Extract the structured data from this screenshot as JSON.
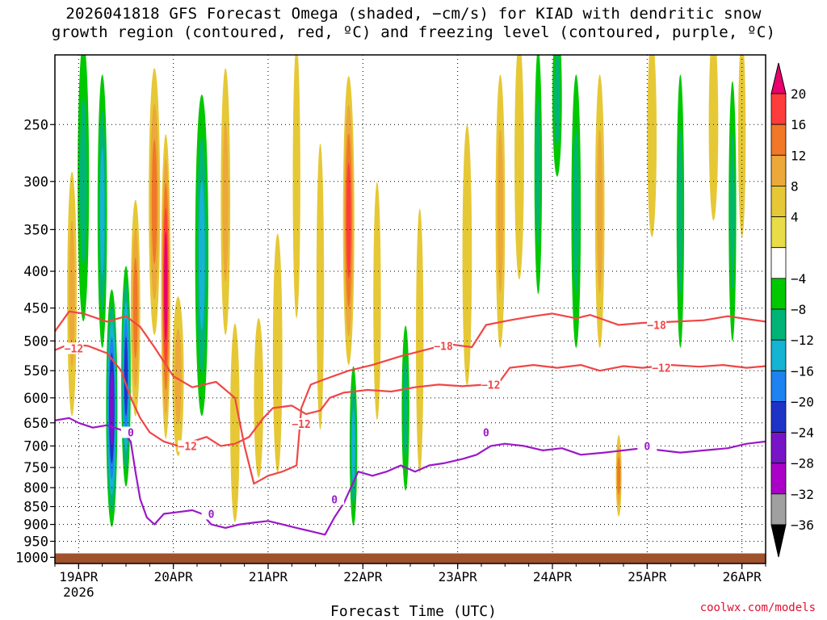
{
  "header": {
    "title_line1": "2026041818 GFS Forecast Omega (shaded, −cm/s) for KIAD with dendritic snow",
    "title_line2": "growth region (contoured, red, ºC) and freezing level (contoured, purple, ºC)"
  },
  "footer": {
    "xlabel": "Forecast Time (UTC)",
    "credit": "coolwx.com/models"
  },
  "chart_data": {
    "type": "heatmap",
    "title": "2026041818 GFS Forecast Omega (shaded, −cm/s) for KIAD with dendritic snow growth region (contoured, red, ºC) and freezing level (contoured, purple, ºC)",
    "xlabel": "Forecast Time (UTC)",
    "ylabel": "",
    "x_ticks": [
      "19APR",
      "20APR",
      "21APR",
      "22APR",
      "23APR",
      "24APR",
      "25APR",
      "26APR"
    ],
    "x_year_label": "2026",
    "y_ticks": [
      250,
      300,
      350,
      400,
      450,
      500,
      550,
      600,
      650,
      700,
      750,
      800,
      850,
      900,
      950,
      1000
    ],
    "y_range_hpa": [
      200,
      1020
    ],
    "y_scale": "log-pressure",
    "x_range_days": [
      18.75,
      26.25
    ],
    "grid": true,
    "colorbar": {
      "levels": [
        -36,
        -32,
        -28,
        -24,
        -20,
        -16,
        -12,
        -8,
        -4,
        4,
        8,
        12,
        16,
        20
      ],
      "labels": [
        "20",
        "16",
        "12",
        "8",
        "4",
        "−4",
        "−8",
        "−12",
        "−16",
        "−20",
        "−24",
        "−28",
        "−32",
        "−36"
      ],
      "colors_top_to_bottom": [
        "#e8006c",
        "#ff3c3c",
        "#f07828",
        "#eca83a",
        "#e6c836",
        "#e8dc48",
        "#ffffff",
        "#00c800",
        "#00b478",
        "#14b4d2",
        "#1e82f0",
        "#1e32c8",
        "#7814c8",
        "#aa00c8",
        "#a0a0a0",
        "#000000"
      ]
    },
    "omega_blobs": [
      {
        "t": 18.93,
        "p": 430,
        "w": 0.05,
        "h": 320,
        "v": 10
      },
      {
        "t": 19.05,
        "p": 300,
        "w": 0.06,
        "h": 380,
        "v": -8
      },
      {
        "t": 19.25,
        "p": 330,
        "w": 0.05,
        "h": 300,
        "v": -12
      },
      {
        "t": 19.35,
        "p": 620,
        "w": 0.06,
        "h": 450,
        "v": -24
      },
      {
        "t": 19.5,
        "p": 560,
        "w": 0.05,
        "h": 380,
        "v": -20
      },
      {
        "t": 19.6,
        "p": 450,
        "w": 0.05,
        "h": 300,
        "v": 12
      },
      {
        "t": 19.8,
        "p": 320,
        "w": 0.06,
        "h": 300,
        "v": 14
      },
      {
        "t": 19.92,
        "p": 420,
        "w": 0.05,
        "h": 380,
        "v": 20
      },
      {
        "t": 20.05,
        "p": 560,
        "w": 0.06,
        "h": 280,
        "v": 10
      },
      {
        "t": 20.3,
        "p": 380,
        "w": 0.07,
        "h": 360,
        "v": -14
      },
      {
        "t": 20.55,
        "p": 320,
        "w": 0.05,
        "h": 300,
        "v": 10
      },
      {
        "t": 20.65,
        "p": 650,
        "w": 0.05,
        "h": 400,
        "v": 6
      },
      {
        "t": 20.9,
        "p": 600,
        "w": 0.05,
        "h": 300,
        "v": 5
      },
      {
        "t": 21.1,
        "p": 520,
        "w": 0.05,
        "h": 380,
        "v": 6
      },
      {
        "t": 21.3,
        "p": 300,
        "w": 0.04,
        "h": 360,
        "v": 5
      },
      {
        "t": 21.55,
        "p": 420,
        "w": 0.04,
        "h": 360,
        "v": 5
      },
      {
        "t": 21.85,
        "p": 340,
        "w": 0.06,
        "h": 330,
        "v": 18
      },
      {
        "t": 21.9,
        "p": 700,
        "w": 0.04,
        "h": 350,
        "v": -12
      },
      {
        "t": 22.15,
        "p": 440,
        "w": 0.04,
        "h": 320,
        "v": 5
      },
      {
        "t": 22.45,
        "p": 620,
        "w": 0.04,
        "h": 320,
        "v": -8
      },
      {
        "t": 22.6,
        "p": 500,
        "w": 0.04,
        "h": 400,
        "v": 5
      },
      {
        "t": 23.1,
        "p": 380,
        "w": 0.05,
        "h": 300,
        "v": 6
      },
      {
        "t": 23.45,
        "p": 330,
        "w": 0.05,
        "h": 300,
        "v": 8
      },
      {
        "t": 23.65,
        "p": 280,
        "w": 0.05,
        "h": 300,
        "v": 5
      },
      {
        "t": 23.85,
        "p": 290,
        "w": 0.04,
        "h": 300,
        "v": -8
      },
      {
        "t": 24.05,
        "p": 230,
        "w": 0.05,
        "h": 200,
        "v": -10
      },
      {
        "t": 24.25,
        "p": 330,
        "w": 0.05,
        "h": 300,
        "v": -8
      },
      {
        "t": 24.5,
        "p": 330,
        "w": 0.05,
        "h": 300,
        "v": 8
      },
      {
        "t": 24.7,
        "p": 770,
        "w": 0.03,
        "h": 200,
        "v": 12
      },
      {
        "t": 25.05,
        "p": 260,
        "w": 0.05,
        "h": 240,
        "v": 5
      },
      {
        "t": 25.35,
        "p": 330,
        "w": 0.04,
        "h": 300,
        "v": -8
      },
      {
        "t": 25.7,
        "p": 250,
        "w": 0.05,
        "h": 240,
        "v": 6
      },
      {
        "t": 25.9,
        "p": 330,
        "w": 0.04,
        "h": 260,
        "v": -8
      },
      {
        "t": 26.0,
        "p": 260,
        "w": 0.04,
        "h": 240,
        "v": 5
      }
    ],
    "contours": [
      {
        "name": "-18",
        "color": "#f04646",
        "label_points": [
          [
            22.85,
            508
          ],
          [
            25.1,
            475
          ]
        ],
        "points": [
          [
            18.75,
            485
          ],
          [
            18.9,
            455
          ],
          [
            19.05,
            458
          ],
          [
            19.3,
            470
          ],
          [
            19.5,
            462
          ],
          [
            19.65,
            478
          ],
          [
            19.8,
            510
          ],
          [
            20.0,
            560
          ],
          [
            20.2,
            580
          ],
          [
            20.45,
            570
          ],
          [
            20.65,
            600
          ],
          [
            20.75,
            700
          ],
          [
            20.85,
            790
          ],
          [
            21.0,
            770
          ],
          [
            21.15,
            760
          ],
          [
            21.3,
            745
          ],
          [
            21.35,
            620
          ],
          [
            21.45,
            575
          ],
          [
            21.6,
            565
          ],
          [
            21.85,
            550
          ],
          [
            22.1,
            540
          ],
          [
            22.4,
            525
          ],
          [
            22.65,
            515
          ],
          [
            22.9,
            505
          ],
          [
            23.15,
            510
          ],
          [
            23.3,
            475
          ],
          [
            23.55,
            468
          ],
          [
            23.8,
            462
          ],
          [
            24.0,
            458
          ],
          [
            24.25,
            465
          ],
          [
            24.4,
            460
          ],
          [
            24.7,
            475
          ],
          [
            24.95,
            472
          ],
          [
            25.3,
            470
          ],
          [
            25.6,
            468
          ],
          [
            25.85,
            462
          ],
          [
            26.05,
            466
          ],
          [
            26.25,
            470
          ]
        ]
      },
      {
        "name": "-12",
        "color": "#f04646",
        "label_points": [
          [
            18.95,
            512
          ],
          [
            20.15,
            700
          ],
          [
            21.35,
            652
          ],
          [
            23.35,
            575
          ],
          [
            25.15,
            545
          ]
        ],
        "points": [
          [
            18.75,
            515
          ],
          [
            18.9,
            505
          ],
          [
            19.1,
            508
          ],
          [
            19.3,
            520
          ],
          [
            19.45,
            550
          ],
          [
            19.55,
            600
          ],
          [
            19.65,
            640
          ],
          [
            19.75,
            670
          ],
          [
            19.9,
            690
          ],
          [
            20.05,
            700
          ],
          [
            20.2,
            690
          ],
          [
            20.35,
            680
          ],
          [
            20.5,
            700
          ],
          [
            20.65,
            695
          ],
          [
            20.8,
            680
          ],
          [
            20.95,
            640
          ],
          [
            21.05,
            620
          ],
          [
            21.25,
            615
          ],
          [
            21.4,
            632
          ],
          [
            21.55,
            625
          ],
          [
            21.65,
            600
          ],
          [
            21.8,
            590
          ],
          [
            22.05,
            585
          ],
          [
            22.3,
            588
          ],
          [
            22.55,
            580
          ],
          [
            22.8,
            575
          ],
          [
            23.05,
            578
          ],
          [
            23.3,
            575
          ],
          [
            23.45,
            568
          ],
          [
            23.55,
            545
          ],
          [
            23.8,
            540
          ],
          [
            24.05,
            545
          ],
          [
            24.3,
            540
          ],
          [
            24.5,
            550
          ],
          [
            24.75,
            542
          ],
          [
            24.95,
            545
          ],
          [
            25.25,
            540
          ],
          [
            25.55,
            543
          ],
          [
            25.8,
            540
          ],
          [
            26.05,
            545
          ],
          [
            26.25,
            542
          ]
        ]
      },
      {
        "name": "0",
        "color": "#9b18c8",
        "label_points": [
          [
            19.55,
            670
          ],
          [
            20.4,
            870
          ],
          [
            21.7,
            830
          ],
          [
            23.3,
            670
          ],
          [
            25.0,
            700
          ]
        ],
        "points": [
          [
            18.75,
            645
          ],
          [
            18.9,
            640
          ],
          [
            19.0,
            650
          ],
          [
            19.15,
            660
          ],
          [
            19.3,
            655
          ],
          [
            19.45,
            665
          ],
          [
            19.55,
            690
          ],
          [
            19.6,
            760
          ],
          [
            19.65,
            830
          ],
          [
            19.72,
            880
          ],
          [
            19.8,
            900
          ],
          [
            19.9,
            870
          ],
          [
            20.05,
            865
          ],
          [
            20.2,
            860
          ],
          [
            20.3,
            870
          ],
          [
            20.4,
            900
          ],
          [
            20.55,
            910
          ],
          [
            20.7,
            900
          ],
          [
            20.85,
            895
          ],
          [
            21.0,
            890
          ],
          [
            21.15,
            900
          ],
          [
            21.3,
            910
          ],
          [
            21.45,
            920
          ],
          [
            21.6,
            930
          ],
          [
            21.7,
            880
          ],
          [
            21.8,
            840
          ],
          [
            21.95,
            760
          ],
          [
            22.1,
            770
          ],
          [
            22.25,
            760
          ],
          [
            22.4,
            745
          ],
          [
            22.55,
            760
          ],
          [
            22.7,
            745
          ],
          [
            22.85,
            740
          ],
          [
            23.05,
            730
          ],
          [
            23.2,
            720
          ],
          [
            23.35,
            700
          ],
          [
            23.5,
            695
          ],
          [
            23.7,
            700
          ],
          [
            23.9,
            710
          ],
          [
            24.1,
            705
          ],
          [
            24.3,
            720
          ],
          [
            24.55,
            715
          ],
          [
            24.75,
            710
          ],
          [
            24.95,
            705
          ],
          [
            25.15,
            710
          ],
          [
            25.35,
            715
          ],
          [
            25.6,
            710
          ],
          [
            25.85,
            705
          ],
          [
            26.05,
            695
          ],
          [
            26.25,
            690
          ]
        ]
      }
    ],
    "ground_color": "#a0522d"
  }
}
